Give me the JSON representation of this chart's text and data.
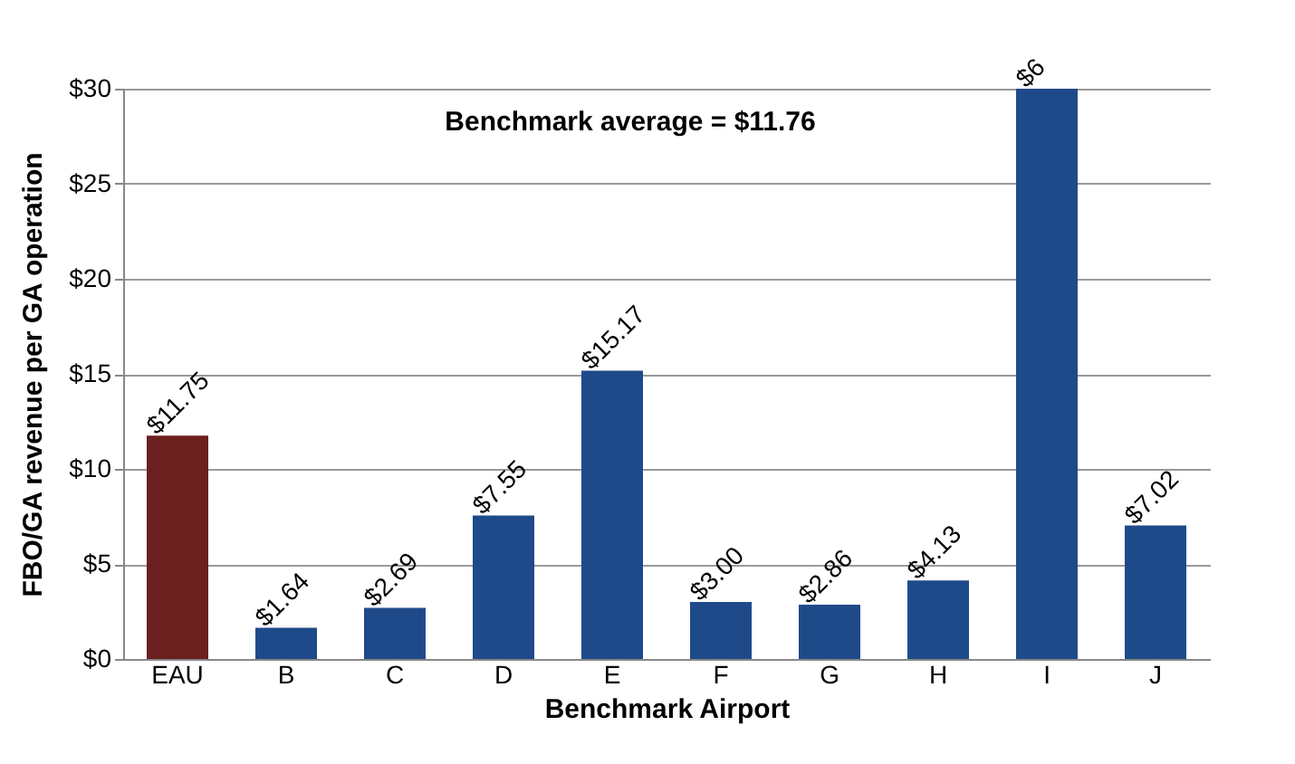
{
  "chart_data": {
    "type": "bar",
    "xlabel": "Benchmark Airport",
    "ylabel": "FBO/GA revenue per GA operation",
    "categories": [
      "EAU",
      "B",
      "C",
      "D",
      "E",
      "F",
      "G",
      "H",
      "I",
      "J"
    ],
    "values": [
      11.75,
      1.64,
      2.69,
      7.55,
      15.17,
      3.0,
      2.86,
      4.13,
      30,
      7.02
    ],
    "colors": [
      "#6b1f1f",
      "#1f4a8a",
      "#1f4a8a",
      "#1f4a8a",
      "#1f4a8a",
      "#1f4a8a",
      "#1f4a8a",
      "#1f4a8a",
      "#1f4a8a",
      "#1f4a8a"
    ],
    "value_labels": [
      "$11.75",
      "$1.64",
      "$2.69",
      "$7.55",
      "$15.17",
      "$3.00",
      "$2.86",
      "$4.13",
      null,
      "$7.02"
    ],
    "annotations": [
      "Benchmark average = $11.76",
      {
        "text": "$6",
        "x": "I",
        "y": 30
      }
    ],
    "ylim": [
      0,
      30
    ],
    "yticks": [
      {
        "value": 0,
        "label": "$0"
      },
      {
        "value": 5,
        "label": "$5"
      },
      {
        "value": 10,
        "label": "$10"
      },
      {
        "value": 15,
        "label": "$15"
      },
      {
        "value": 20,
        "label": "$20"
      },
      {
        "value": 25,
        "label": "$25"
      },
      {
        "value": 30,
        "label": "$30"
      }
    ],
    "grid": true
  }
}
